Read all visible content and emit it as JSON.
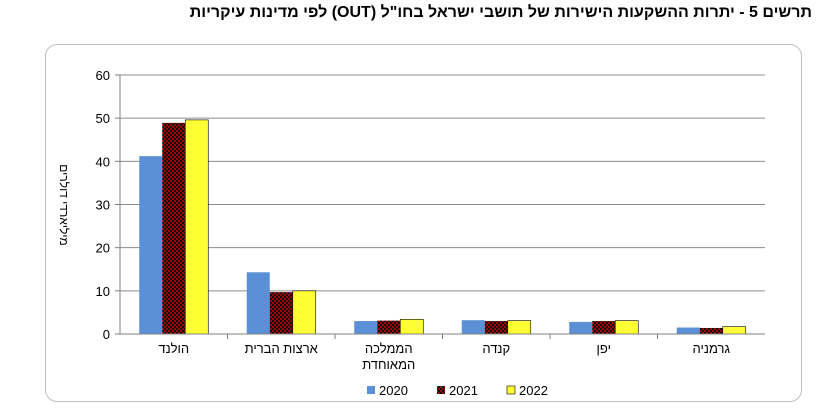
{
  "title": "תרשים 5 - יתרות ההשקעות הישירות של תושבי ישראל בחו\"ל (OUT) לפי מדינות עיקריות",
  "chart_data": {
    "type": "bar",
    "ylabel": "מיליארדי דולרים",
    "ylim": [
      0,
      60
    ],
    "yticks": [
      0,
      10,
      20,
      30,
      40,
      50,
      60
    ],
    "grid": true,
    "legend_position": "bottom",
    "categories": [
      [
        "הולנד"
      ],
      [
        "ארצות הברית"
      ],
      [
        "הממלכה",
        "המאוחדת"
      ],
      [
        "קנדה"
      ],
      [
        "יפן"
      ],
      [
        "גרמניה"
      ]
    ],
    "series": [
      {
        "name": "2020",
        "color": "#5b8fd6",
        "pattern": "solid",
        "values": [
          41.2,
          14.3,
          3.0,
          3.2,
          2.8,
          1.5
        ]
      },
      {
        "name": "2021",
        "color": "#a00000",
        "pattern": "checker",
        "values": [
          48.9,
          9.7,
          3.1,
          3.0,
          3.0,
          1.4
        ]
      },
      {
        "name": "2022",
        "color": "#ffff33",
        "pattern": "solid",
        "values": [
          49.6,
          10.0,
          3.4,
          3.1,
          3.1,
          1.7
        ]
      }
    ]
  }
}
